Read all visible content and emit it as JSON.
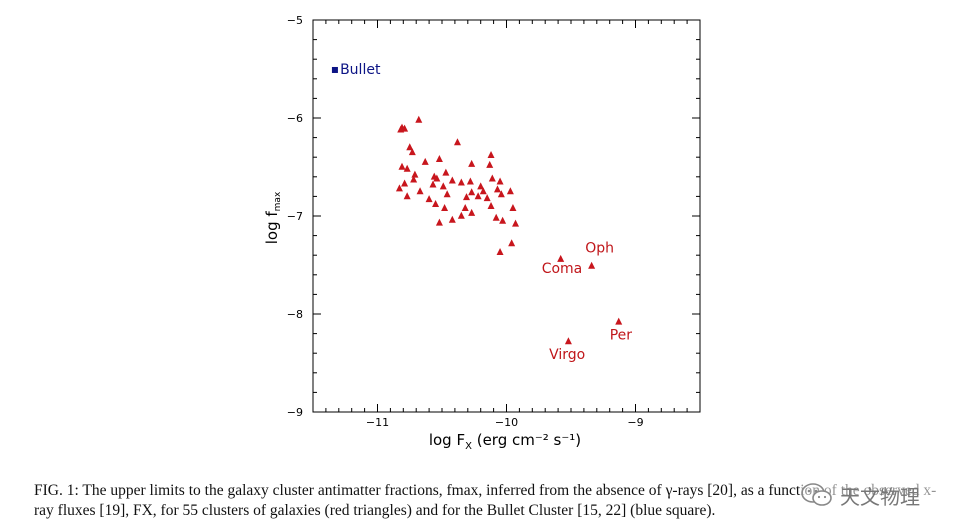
{
  "chart_data": {
    "type": "scatter",
    "xlabel_main": "log F",
    "xlabel_sub": "X",
    "xlabel_rest": " (erg cm⁻² s⁻¹)",
    "ylabel_main": "log f",
    "ylabel_sub": "max",
    "xlim": [
      -11.5,
      -8.5
    ],
    "ylim": [
      -9,
      -5
    ],
    "x_ticks": [
      {
        "value": -11,
        "label": "−11"
      },
      {
        "value": -10,
        "label": "−10"
      },
      {
        "value": -9,
        "label": "−9"
      }
    ],
    "y_ticks": [
      {
        "value": -9,
        "label": "−9"
      },
      {
        "value": -8,
        "label": "−8"
      },
      {
        "value": -7,
        "label": "−7"
      },
      {
        "value": -6,
        "label": "−6"
      },
      {
        "value": -5,
        "label": "−5"
      }
    ],
    "series": [
      {
        "name": "clusters of galaxies",
        "marker": "triangle",
        "color": "#c8161d",
        "points": [
          [
            -10.81,
            -6.1
          ],
          [
            -10.79,
            -6.11
          ],
          [
            -10.82,
            -6.12
          ],
          [
            -10.68,
            -6.02
          ],
          [
            -10.75,
            -6.3
          ],
          [
            -10.73,
            -6.35
          ],
          [
            -10.38,
            -6.25
          ],
          [
            -10.12,
            -6.38
          ],
          [
            -10.63,
            -6.45
          ],
          [
            -10.52,
            -6.42
          ],
          [
            -10.27,
            -6.47
          ],
          [
            -10.13,
            -6.48
          ],
          [
            -10.81,
            -6.5
          ],
          [
            -10.77,
            -6.52
          ],
          [
            -10.71,
            -6.58
          ],
          [
            -10.56,
            -6.6
          ],
          [
            -10.47,
            -6.56
          ],
          [
            -10.54,
            -6.62
          ],
          [
            -10.42,
            -6.64
          ],
          [
            -10.11,
            -6.62
          ],
          [
            -10.79,
            -6.67
          ],
          [
            -10.72,
            -6.63
          ],
          [
            -10.57,
            -6.68
          ],
          [
            -10.49,
            -6.7
          ],
          [
            -10.35,
            -6.66
          ],
          [
            -10.28,
            -6.65
          ],
          [
            -10.2,
            -6.7
          ],
          [
            -10.05,
            -6.65
          ],
          [
            -10.83,
            -6.72
          ],
          [
            -10.67,
            -6.75
          ],
          [
            -10.46,
            -6.78
          ],
          [
            -10.27,
            -6.76
          ],
          [
            -10.18,
            -6.75
          ],
          [
            -10.07,
            -6.73
          ],
          [
            -10.04,
            -6.78
          ],
          [
            -9.97,
            -6.75
          ],
          [
            -10.77,
            -6.8
          ],
          [
            -10.6,
            -6.83
          ],
          [
            -10.31,
            -6.81
          ],
          [
            -10.22,
            -6.8
          ],
          [
            -10.15,
            -6.82
          ],
          [
            -10.55,
            -6.88
          ],
          [
            -10.48,
            -6.92
          ],
          [
            -10.32,
            -6.92
          ],
          [
            -10.12,
            -6.9
          ],
          [
            -9.95,
            -6.92
          ],
          [
            -10.35,
            -7.0
          ],
          [
            -10.27,
            -6.97
          ],
          [
            -10.08,
            -7.02
          ],
          [
            -10.42,
            -7.04
          ],
          [
            -10.52,
            -7.07
          ],
          [
            -9.93,
            -7.08
          ],
          [
            -10.03,
            -7.05
          ],
          [
            -9.96,
            -7.28
          ],
          [
            -10.05,
            -7.37
          ]
        ]
      },
      {
        "name": "Bullet Cluster",
        "marker": "square",
        "color": "#0c1485",
        "points": [
          [
            -11.33,
            -5.51
          ]
        ]
      }
    ],
    "annotations": [
      {
        "text": "Bullet",
        "x": -11.29,
        "y": -5.55,
        "anchor": "start",
        "series": "blue"
      },
      {
        "text": "Oph",
        "x": -9.39,
        "y": -7.37,
        "anchor": "start",
        "series": "red"
      },
      {
        "text": "Coma",
        "x": -9.57,
        "y": -7.58,
        "anchor": "middle",
        "series": "red"
      },
      {
        "text": "Per",
        "x": -9.2,
        "y": -8.26,
        "anchor": "start",
        "series": "red"
      },
      {
        "text": "Virgo",
        "x": -9.53,
        "y": -8.46,
        "anchor": "middle",
        "series": "red"
      }
    ],
    "named_points": [
      {
        "name": "Oph",
        "x": -9.34,
        "y": -7.51
      },
      {
        "name": "Coma",
        "x": -9.58,
        "y": -7.44
      },
      {
        "name": "Per",
        "x": -9.13,
        "y": -8.08
      },
      {
        "name": "Virgo",
        "x": -9.52,
        "y": -8.28
      }
    ]
  },
  "caption": {
    "text": "FIG. 1:  The upper limits to the galaxy cluster antimatter fractions, fmax, inferred from the absence of γ-rays [20], as a function of the observed x-ray fluxes [19], FX, for 55 clusters of galaxies (red triangles) and for the Bullet Cluster [15, 22] (blue square)."
  },
  "watermark": {
    "text": "天文物理",
    "icon": "wechat-icon"
  }
}
